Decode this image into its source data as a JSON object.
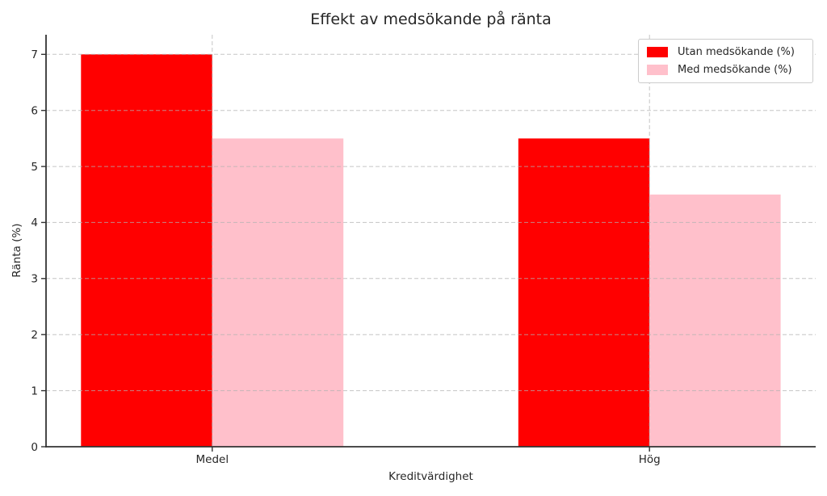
{
  "chart_data": {
    "type": "bar",
    "title": "Effekt av medsökande på ränta",
    "xlabel": "Kreditvärdighet",
    "ylabel": "Ränta (%)",
    "categories": [
      "Medel",
      "Hög"
    ],
    "series": [
      {
        "name": "Utan medsökande (%)",
        "color": "#ff0000",
        "values": [
          7.0,
          5.5
        ]
      },
      {
        "name": "Med medsökande (%)",
        "color": "#ffc0cb",
        "values": [
          5.5,
          4.5
        ]
      }
    ],
    "ylim": [
      0,
      7.35
    ],
    "xlim": [
      -0.38,
      1.38
    ],
    "yticks": [
      0,
      1,
      2,
      3,
      4,
      5,
      6,
      7
    ],
    "bar_width": 0.3,
    "grid": true,
    "grid_style": "dashed",
    "grid_above_bars": true,
    "legend_position": "upper right",
    "style": {
      "grid_color": "#c8c8c8",
      "spine_color": "#333333",
      "tick_color": "#333333",
      "text_color": "#262626",
      "legend_border_color": "#cccccc",
      "background": "#ffffff"
    }
  }
}
